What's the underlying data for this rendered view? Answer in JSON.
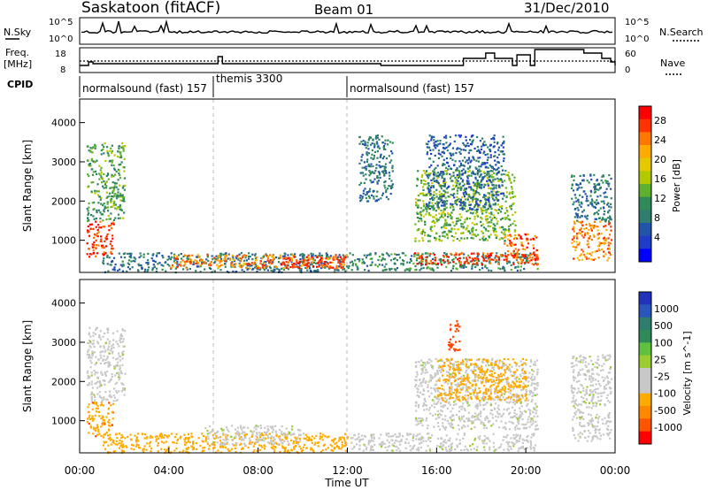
{
  "header": {
    "station": "Saskatoon (fitACF)",
    "beam": "Beam 01",
    "date": "31/Dec/2010"
  },
  "noise_panel": {
    "left_label": "N.Sky",
    "right_label": "N.Search",
    "left_ticks": [
      "10^5",
      "10^0"
    ],
    "right_ticks": [
      "10^5",
      "10^0"
    ]
  },
  "freq_panel": {
    "left_label_1": "Freq.",
    "left_label_2": "[MHz]",
    "right_label": "Nave",
    "left_ticks": [
      "18",
      "8"
    ],
    "right_ticks": [
      "60",
      "0"
    ]
  },
  "cpid": {
    "label": "CPID",
    "segments": [
      {
        "text": "normalsound (fast) 157",
        "start_hour": 0
      },
      {
        "text": "themis 3300",
        "start_hour": 6
      },
      {
        "text": "normalsound (fast) 157",
        "start_hour": 12
      }
    ]
  },
  "power_panel": {
    "ylabel": "Slant Range [km]",
    "cbar_label": "Power [dB]",
    "cbar_ticks": [
      "28",
      "24",
      "20",
      "16",
      "12",
      "8",
      "4"
    ],
    "cbar_colors": [
      "#ff0000",
      "#ff3300",
      "#ff7700",
      "#ffaa00",
      "#e6c800",
      "#b4c800",
      "#60b030",
      "#2e8b57",
      "#2e7d6e",
      "#2255aa",
      "#1e3cc8",
      "#0000ff"
    ]
  },
  "velocity_panel": {
    "ylabel": "Slant Range [km]",
    "cbar_label": "Velocity [m s^-1]",
    "cbar_ticks": [
      "1000",
      "500",
      "100",
      "25",
      "-25",
      "-100",
      "-500",
      "-1000"
    ],
    "cbar_colors": [
      "#2233bb",
      "#2a55bb",
      "#2e7d6e",
      "#2e8b57",
      "#60c040",
      "#9acd32",
      "#c8c8c8",
      "#c8c8c8",
      "#ffaa00",
      "#ff8800",
      "#ff5500",
      "#ff0000"
    ]
  },
  "x_axis": {
    "label": "Time UT",
    "ticks": [
      "00:00",
      "04:00",
      "08:00",
      "12:00",
      "16:00",
      "20:00",
      "00:00"
    ]
  },
  "y_axis": {
    "ticks": [
      "4000",
      "3000",
      "2000",
      "1000"
    ]
  },
  "chart_data": {
    "type": "heatmap",
    "title": "Saskatoon (fitACF)  Beam 01  31/Dec/2010",
    "xlabel": "Time UT",
    "ylabel": "Slant Range [km]",
    "xlim_hours": [
      0,
      24
    ],
    "ylim_km": [
      180,
      4600
    ],
    "vertical_markers_hours": [
      6,
      12
    ],
    "power_regions": [
      {
        "t0": 0.3,
        "t1": 1.5,
        "r0": 600,
        "r1": 1500,
        "db": 28
      },
      {
        "t0": 0.3,
        "t1": 2.0,
        "r0": 1500,
        "r1": 3500,
        "db": 12
      },
      {
        "t0": 1.0,
        "t1": 12.0,
        "r0": 200,
        "r1": 700,
        "db": 8
      },
      {
        "t0": 4.0,
        "t1": 12.0,
        "r0": 300,
        "r1": 650,
        "db": 24
      },
      {
        "t0": 9.0,
        "t1": 12.0,
        "r0": 300,
        "r1": 600,
        "db": 28
      },
      {
        "t0": 12.0,
        "t1": 20.5,
        "r0": 250,
        "r1": 700,
        "db": 10
      },
      {
        "t0": 15.0,
        "t1": 20.5,
        "r0": 400,
        "r1": 700,
        "db": 28
      },
      {
        "t0": 12.5,
        "t1": 14.0,
        "r0": 2000,
        "r1": 3700,
        "db": 8
      },
      {
        "t0": 15.0,
        "t1": 19.5,
        "r0": 1000,
        "r1": 2800,
        "db": 14
      },
      {
        "t0": 15.5,
        "t1": 19.0,
        "r0": 1800,
        "r1": 3700,
        "db": 6
      },
      {
        "t0": 19.0,
        "t1": 20.5,
        "r0": 500,
        "r1": 1200,
        "db": 26
      },
      {
        "t0": 22.0,
        "t1": 23.8,
        "r0": 500,
        "r1": 1500,
        "db": 24
      },
      {
        "t0": 22.0,
        "t1": 23.8,
        "r0": 1500,
        "r1": 2700,
        "db": 8
      }
    ],
    "velocity_regions": [
      {
        "t0": 0.3,
        "t1": 1.5,
        "r0": 600,
        "r1": 1500,
        "v": -400
      },
      {
        "t0": 0.3,
        "t1": 2.0,
        "r0": 1500,
        "r1": 3400,
        "v": 0
      },
      {
        "t0": 1.0,
        "t1": 6.0,
        "r0": 200,
        "r1": 700,
        "v": -150
      },
      {
        "t0": 6.0,
        "t1": 12.0,
        "r0": 200,
        "r1": 700,
        "v": -200
      },
      {
        "t0": 5.5,
        "t1": 10.0,
        "r0": 400,
        "r1": 900,
        "v": 0
      },
      {
        "t0": 12.0,
        "t1": 20.5,
        "r0": 250,
        "r1": 700,
        "v": 0
      },
      {
        "t0": 15.0,
        "t1": 20.5,
        "r0": 800,
        "r1": 2600,
        "v": 0
      },
      {
        "t0": 16.0,
        "t1": 20.0,
        "r0": 1500,
        "r1": 2600,
        "v": -300
      },
      {
        "t0": 16.5,
        "t1": 17.0,
        "r0": 2800,
        "r1": 3600,
        "v": -600
      },
      {
        "t0": 22.0,
        "t1": 23.8,
        "r0": 500,
        "r1": 2700,
        "v": 0
      }
    ]
  }
}
